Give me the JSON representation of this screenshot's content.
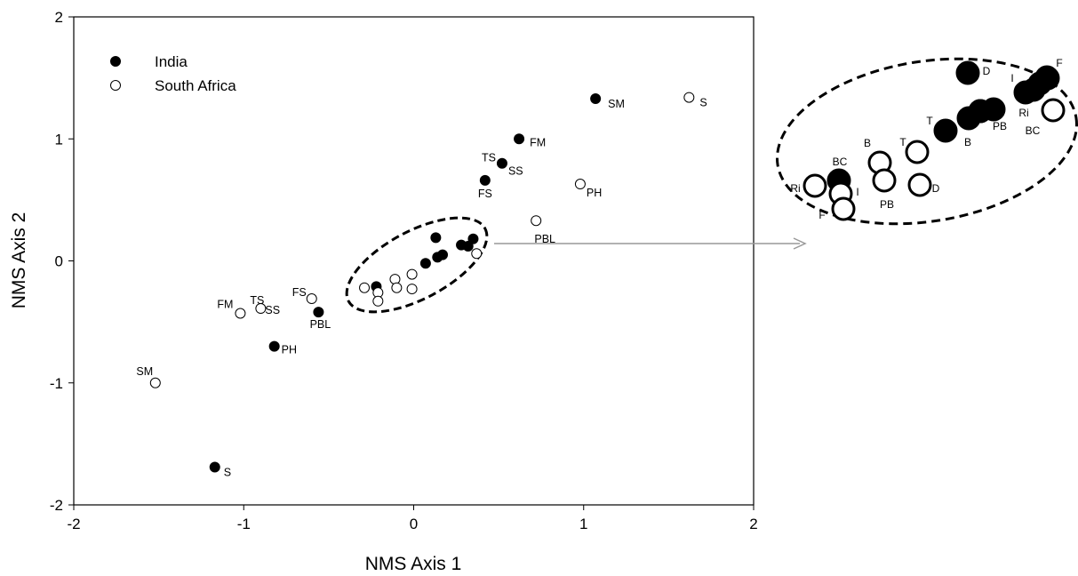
{
  "chart_data": {
    "type": "scatter",
    "xlabel": "NMS Axis 1",
    "ylabel": "NMS Axis 2",
    "xlim": [
      -2,
      2
    ],
    "ylim": [
      -2,
      2
    ],
    "xticks": [
      "-2",
      "-1",
      "0",
      "1",
      "2"
    ],
    "yticks": [
      "-2",
      "-1",
      "0",
      "1",
      "2"
    ],
    "grid": false,
    "legend_position": "top-left",
    "series": [
      {
        "name": "India",
        "marker": "filled-circle",
        "color": "#000000",
        "points": [
          {
            "x": 1.07,
            "y": 1.33,
            "label": "SM"
          },
          {
            "x": 0.62,
            "y": 1.0,
            "label": "FM"
          },
          {
            "x": 0.52,
            "y": 0.8,
            "label": "TS SS"
          },
          {
            "x": 0.42,
            "y": 0.66,
            "label": "FS"
          },
          {
            "x": -0.56,
            "y": -0.42,
            "label": "PBL"
          },
          {
            "x": -0.82,
            "y": -0.7,
            "label": "PH"
          },
          {
            "x": -1.17,
            "y": -1.69,
            "label": "S"
          },
          {
            "x": 0.13,
            "y": 0.19,
            "label": ""
          },
          {
            "x": 0.28,
            "y": 0.13,
            "label": ""
          },
          {
            "x": 0.35,
            "y": 0.18,
            "label": ""
          },
          {
            "x": 0.32,
            "y": 0.12,
            "label": ""
          },
          {
            "x": 0.14,
            "y": 0.03,
            "label": ""
          },
          {
            "x": 0.17,
            "y": 0.05,
            "label": ""
          },
          {
            "x": 0.07,
            "y": -0.02,
            "label": ""
          },
          {
            "x": -0.22,
            "y": -0.21,
            "label": ""
          }
        ]
      },
      {
        "name": "South Africa",
        "marker": "open-circle",
        "color": "#000000",
        "points": [
          {
            "x": 1.62,
            "y": 1.34,
            "label": "S"
          },
          {
            "x": 0.98,
            "y": 0.63,
            "label": "PH"
          },
          {
            "x": 0.72,
            "y": 0.33,
            "label": "PBL"
          },
          {
            "x": -0.6,
            "y": -0.31,
            "label": "FS"
          },
          {
            "x": -0.9,
            "y": -0.39,
            "label": "TS SS"
          },
          {
            "x": -1.02,
            "y": -0.43,
            "label": "FM"
          },
          {
            "x": -1.52,
            "y": -1.0,
            "label": "SM"
          },
          {
            "x": 0.37,
            "y": 0.06,
            "label": ""
          },
          {
            "x": -0.01,
            "y": -0.11,
            "label": ""
          },
          {
            "x": -0.11,
            "y": -0.15,
            "label": ""
          },
          {
            "x": -0.29,
            "y": -0.22,
            "label": ""
          },
          {
            "x": -0.1,
            "y": -0.22,
            "label": ""
          },
          {
            "x": -0.01,
            "y": -0.23,
            "label": ""
          },
          {
            "x": -0.21,
            "y": -0.26,
            "label": ""
          },
          {
            "x": -0.21,
            "y": -0.33,
            "label": ""
          }
        ]
      }
    ],
    "inset": {
      "description": "enlarged cluster",
      "points": [
        {
          "series": "India",
          "label": "D"
        },
        {
          "series": "India",
          "label": "I"
        },
        {
          "series": "India",
          "label": "F"
        },
        {
          "series": "India",
          "label": "Ri"
        },
        {
          "series": "India",
          "label": "PB"
        },
        {
          "series": "India",
          "label": "T"
        },
        {
          "series": "India",
          "label": "B"
        },
        {
          "series": "India",
          "label": "BC"
        },
        {
          "series": "South Africa",
          "label": "BC"
        },
        {
          "series": "South Africa",
          "label": "B"
        },
        {
          "series": "South Africa",
          "label": "T"
        },
        {
          "series": "South Africa",
          "label": "PB"
        },
        {
          "series": "South Africa",
          "label": "D"
        },
        {
          "series": "South Africa",
          "label": "Ri"
        },
        {
          "series": "South Africa",
          "label": "I"
        },
        {
          "series": "South Africa",
          "label": "F"
        }
      ]
    }
  }
}
